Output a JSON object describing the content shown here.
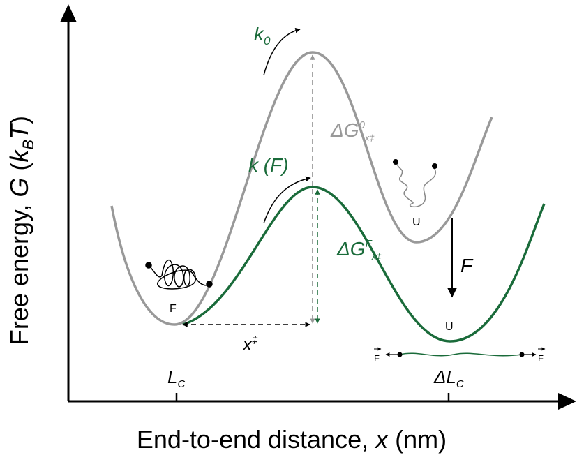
{
  "axes": {
    "y_label": {
      "prefix": "Free energy, ",
      "var": "G",
      "open": " (",
      "k": "k",
      "sub": "B",
      "T": "T",
      "close": ")"
    },
    "x_label": {
      "prefix": "End-to-end distance, ",
      "var": "x",
      "suffix": " (nm)"
    },
    "x_ticks": [
      {
        "main": "L",
        "sub": "C"
      },
      {
        "main": "ΔL",
        "sub": "C"
      }
    ]
  },
  "labels": {
    "k0": {
      "main": "k",
      "sub": "0"
    },
    "kF": "k (F)",
    "dG0": {
      "main": "ΔG",
      "sup": "0",
      "sub": "x‡"
    },
    "dGF": {
      "main": "ΔG",
      "sup": "F",
      "sub": "x‡"
    },
    "x_ts": {
      "main": "x",
      "sup": "‡"
    },
    "folded": "F",
    "unfolded_top": "U",
    "unfolded_bottom": "U",
    "force": "F",
    "force_left": "F",
    "force_right": "F"
  }
}
